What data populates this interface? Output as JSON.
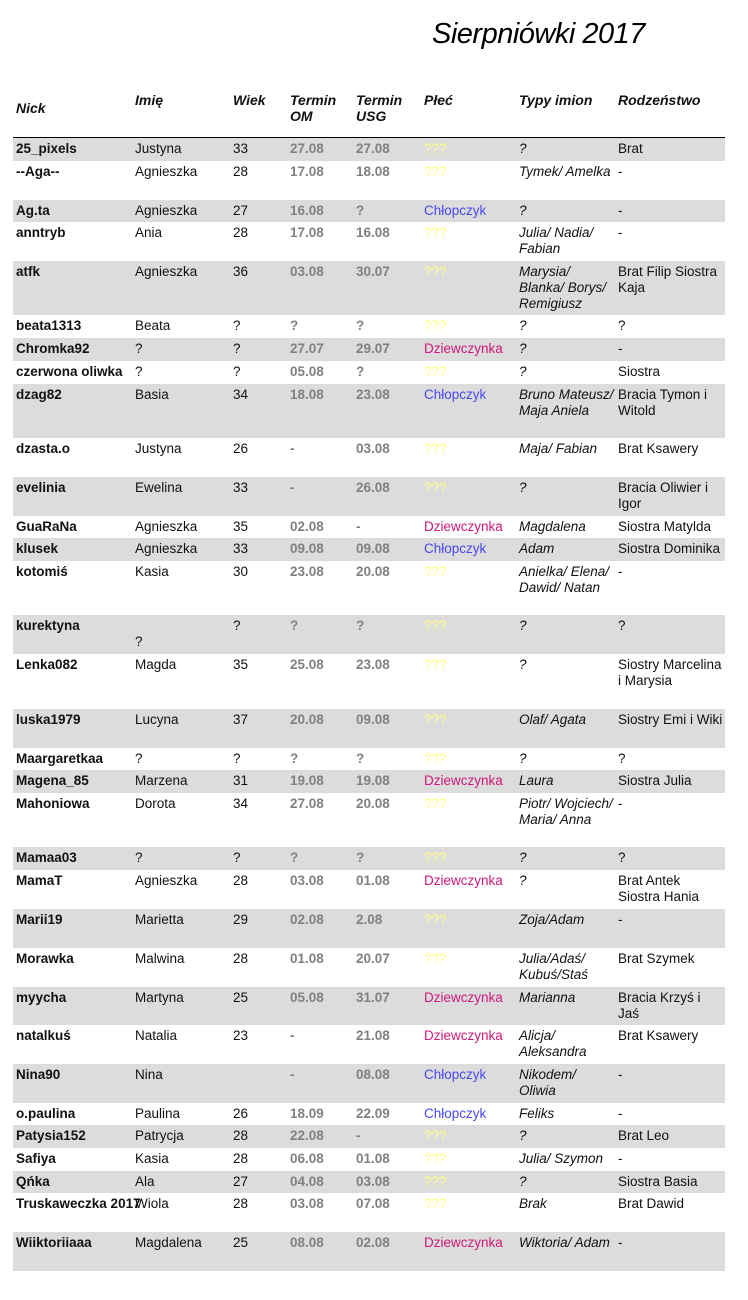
{
  "title": "Sierpniówki 2017",
  "headers": [
    "Nick",
    "Imię",
    "Wiek",
    "Termin OM",
    "Termin USG",
    "Płeć",
    "Typy imion",
    "Rodzeństwo"
  ],
  "colors": {
    "unknown": "#ffff80",
    "boy": "#4848f0",
    "girl": "#d0187a",
    "row_shade": "#dcdcdc",
    "date": "#808080"
  },
  "rows": [
    [
      "25_pixels",
      "Justyna",
      "33",
      "27.08",
      "27.08",
      "???",
      "?",
      "Brat"
    ],
    [
      "--Aga--",
      "Agnieszka",
      "28",
      "17.08",
      "18.08",
      "???",
      "Tymek/ Amelka",
      "-"
    ],
    [
      "Ag.ta",
      "Agnieszka",
      "27",
      "16.08",
      "?",
      "Chłopczyk",
      "?",
      "-"
    ],
    [
      "anntryb",
      "Ania",
      "28",
      "17.08",
      "16.08",
      "???",
      "Julia/ Nadia/ Fabian",
      "-"
    ],
    [
      "atfk",
      "Agnieszka",
      "36",
      "03.08",
      "30.07",
      "???",
      "Marysia/ Blanka/ Borys/ Remigiusz",
      "Brat Filip Siostra Kaja"
    ],
    [
      "beata1313",
      "Beata",
      "?",
      "?",
      "?",
      "???",
      "?",
      "?"
    ],
    [
      "Chromka92",
      "?",
      "?",
      "27.07",
      "29.07",
      "Dziewczynka",
      "?",
      "-"
    ],
    [
      "czerwona oliwka",
      "?",
      "?",
      "05.08",
      "?",
      "???",
      "?",
      "Siostra"
    ],
    [
      "dzag82",
      "Basia",
      "34",
      "18.08",
      "23.08",
      "Chłopczyk",
      "Bruno Mateusz/ Maja Aniela",
      "Bracia Tymon i Witold"
    ],
    [
      "dzasta.o",
      "Justyna",
      "26",
      "-",
      "03.08",
      "???",
      "Maja/ Fabian",
      "Brat Ksawery"
    ],
    [
      "evelinia",
      "Ewelina",
      "33",
      "-",
      "26.08",
      "???",
      "?",
      "Bracia Oliwier i Igor"
    ],
    [
      "GuaRaNa",
      "Agnieszka",
      "35",
      "02.08",
      "-",
      "Dziewczynka",
      "Magdalena",
      "Siostra Matylda"
    ],
    [
      "klusek",
      "Agnieszka",
      "33",
      "09.08",
      "09.08",
      "Chłopczyk",
      "Adam",
      "Siostra Dominika"
    ],
    [
      "kotomiś",
      "Kasia",
      "30",
      "23.08",
      "20.08",
      "???",
      "Anielka/ Elena/ Dawid/ Natan",
      "-"
    ],
    [
      "kurektyna",
      "?",
      "?",
      "?",
      "?",
      "???",
      "?",
      "?"
    ],
    [
      "Lenka082",
      "Magda",
      "35",
      "25.08",
      "23.08",
      "???",
      "?",
      "Siostry Marcelina i Marysia"
    ],
    [
      "luska1979",
      "Lucyna",
      "37",
      "20.08",
      "09.08",
      "???",
      "Olaf/ Agata",
      "Siostry Emi i Wiki"
    ],
    [
      "Maargaretkaa",
      "?",
      "?",
      "?",
      "?",
      "???",
      "?",
      "?"
    ],
    [
      "Magena_85",
      "Marzena",
      "31",
      "19.08",
      "19.08",
      "Dziewczynka",
      "Laura",
      "Siostra Julia"
    ],
    [
      "Mahoniowa",
      "Dorota",
      "34",
      "27.08",
      "20.08",
      "???",
      "Piotr/ Wojciech/ Maria/ Anna",
      "-"
    ],
    [
      "Mamaa03",
      "?",
      "?",
      "?",
      "?",
      "???",
      "?",
      "?"
    ],
    [
      "MamaT",
      "Agnieszka",
      "28",
      "03.08",
      "01.08",
      "Dziewczynka",
      "?",
      "Brat Antek Siostra Hania"
    ],
    [
      "Marii19",
      "Marietta",
      "29",
      "02.08",
      "2.08",
      "???",
      "Zoja/Adam",
      "-"
    ],
    [
      "Morawka",
      "Malwina",
      "28",
      "01.08",
      "20.07",
      "???",
      "Julia/Adaś/ Kubuś/Staś",
      "Brat Szymek"
    ],
    [
      "myycha",
      "Martyna",
      "25",
      "05.08",
      "31.07",
      "Dziewczynka",
      "Marianna",
      "Bracia Krzyś i Jaś"
    ],
    [
      "natalkuś",
      "Natalia",
      "23",
      "-",
      "21.08",
      "Dziewczynka",
      "Alicja/ Aleksandra",
      "Brat Ksawery"
    ],
    [
      "Nina90",
      "Nina",
      "",
      "-",
      "08.08",
      "Chłopczyk",
      "Nikodem/ Oliwia",
      "-"
    ],
    [
      "o.paulina",
      "Paulina",
      "26",
      "18.09",
      "22.09",
      "Chłopczyk",
      "Feliks",
      "-"
    ],
    [
      "Patysia152",
      "Patrycja",
      "28",
      "22.08",
      "-",
      "???",
      "?",
      "Brat Leo"
    ],
    [
      "Safiya",
      "Kasia",
      "28",
      "06.08",
      "01.08",
      "???",
      "Julia/ Szymon",
      "-"
    ],
    [
      "Qńka",
      "Ala",
      "27",
      "04.08",
      "03.08",
      "???",
      "?",
      "Siostra Basia"
    ],
    [
      "Truskaweczka 2017",
      "Wiola",
      "28",
      "03.08",
      "07.08",
      "???",
      "Brak",
      "Brat Dawid"
    ],
    [
      "Wiiktoriiaaa",
      "Magdalena",
      "25",
      "08.08",
      "02.08",
      "Dziewczynka",
      "Wiktoria/ Adam",
      "-"
    ]
  ]
}
